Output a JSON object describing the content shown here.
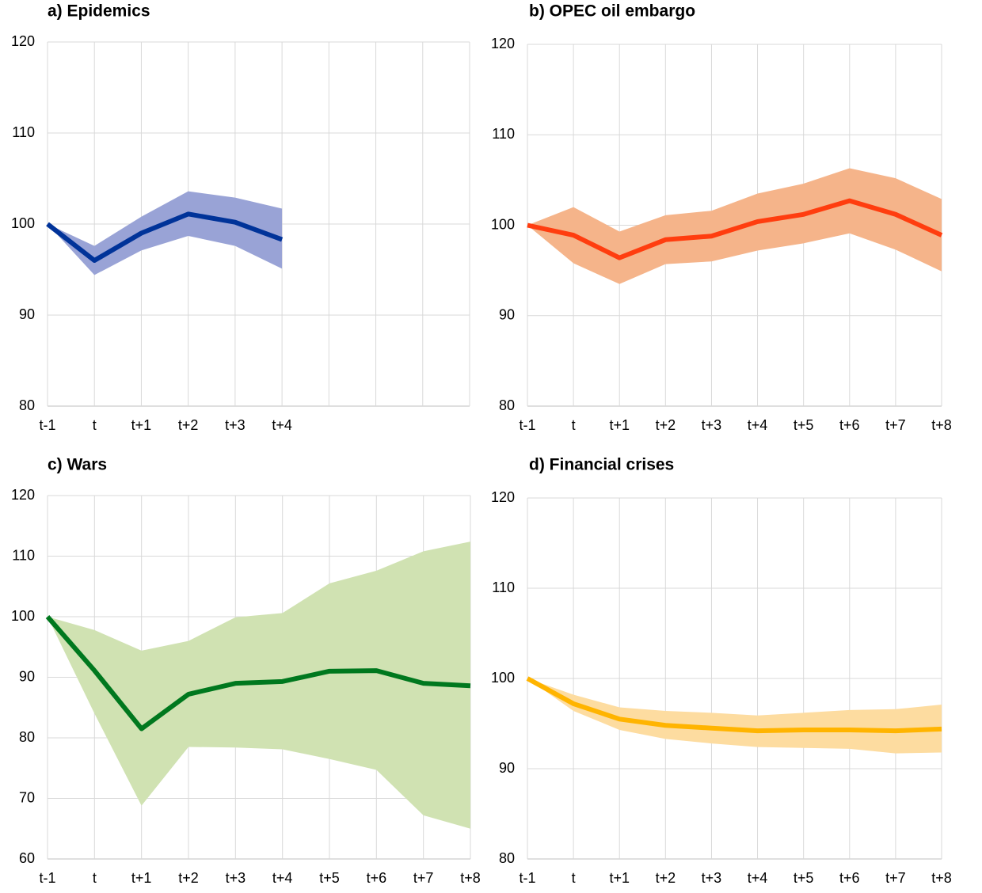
{
  "chart_data": [
    {
      "type": "line",
      "title": "a) Epidemics",
      "categories": [
        "t-1",
        "t",
        "t+1",
        "t+2",
        "t+3",
        "t+4",
        null,
        null,
        null,
        null
      ],
      "ylim": [
        80,
        120
      ],
      "yticks": [
        80,
        90,
        100,
        110,
        120
      ],
      "grid": true,
      "series": [
        {
          "color": "#003399",
          "band_color": "#99a3d6",
          "values": [
            100,
            96,
            99,
            101.1,
            100.2,
            98.3,
            null,
            null,
            null,
            null
          ],
          "upper": [
            100,
            97.6,
            100.8,
            103.6,
            102.9,
            101.7,
            null,
            null,
            null,
            null
          ],
          "lower": [
            100,
            94.4,
            97.1,
            98.7,
            97.6,
            95.1,
            null,
            null,
            null,
            null
          ]
        }
      ]
    },
    {
      "type": "line",
      "title": "b) OPEC oil embargo",
      "categories": [
        "t-1",
        "t",
        "t+1",
        "t+2",
        "t+3",
        "t+4",
        "t+5",
        "t+6",
        "t+7",
        "t+8"
      ],
      "ylim": [
        80,
        120
      ],
      "yticks": [
        80,
        90,
        100,
        110,
        120
      ],
      "grid": true,
      "series": [
        {
          "color": "#ff3d0f",
          "band_color": "#f5b48a",
          "values": [
            100,
            98.9,
            96.4,
            98.4,
            98.8,
            100.4,
            101.2,
            102.7,
            101.2,
            98.9
          ],
          "upper": [
            100,
            102.0,
            99.3,
            101.1,
            101.6,
            103.5,
            104.6,
            106.3,
            105.2,
            102.9
          ],
          "lower": [
            100,
            95.8,
            93.5,
            95.7,
            96.0,
            97.2,
            98.0,
            99.1,
            97.3,
            94.9
          ]
        }
      ]
    },
    {
      "type": "line",
      "title": "c) Wars",
      "categories": [
        "t-1",
        "t",
        "t+1",
        "t+2",
        "t+3",
        "t+4",
        "t+5",
        "t+6",
        "t+7",
        "t+8"
      ],
      "ylim": [
        60,
        120
      ],
      "yticks": [
        60,
        70,
        80,
        90,
        100,
        110,
        120
      ],
      "grid": true,
      "series": [
        {
          "color": "#00781e",
          "band_color": "#d0e2b2",
          "values": [
            100,
            91.1,
            81.5,
            87.2,
            89.0,
            89.3,
            91.0,
            91.1,
            89.0,
            88.6
          ],
          "upper": [
            100,
            97.8,
            94.4,
            96.0,
            99.9,
            100.6,
            105.5,
            107.6,
            110.8,
            112.4
          ],
          "lower": [
            100,
            84.0,
            68.8,
            78.5,
            78.4,
            78.1,
            76.5,
            74.7,
            67.2,
            65.0
          ]
        }
      ]
    },
    {
      "type": "line",
      "title": "d) Financial crises",
      "categories": [
        "t-1",
        "t",
        "t+1",
        "t+2",
        "t+3",
        "t+4",
        "t+5",
        "t+6",
        "t+7",
        "t+8"
      ],
      "ylim": [
        80,
        120
      ],
      "yticks": [
        80,
        90,
        100,
        110,
        120
      ],
      "grid": true,
      "series": [
        {
          "color": "#ffb400",
          "band_color": "#fddca0",
          "values": [
            100,
            97.2,
            95.5,
            94.8,
            94.5,
            94.2,
            94.3,
            94.3,
            94.2,
            94.4
          ],
          "upper": [
            100,
            98.2,
            96.8,
            96.4,
            96.2,
            95.9,
            96.2,
            96.5,
            96.6,
            97.1
          ],
          "lower": [
            100,
            96.4,
            94.3,
            93.3,
            92.8,
            92.4,
            92.3,
            92.2,
            91.7,
            91.8
          ]
        }
      ]
    }
  ]
}
